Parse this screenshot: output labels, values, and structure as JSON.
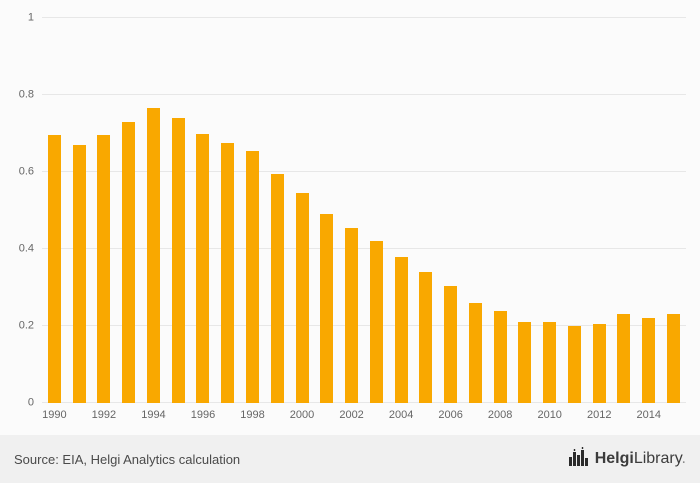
{
  "chart_data": {
    "type": "bar",
    "title": "",
    "xlabel": "",
    "ylabel": "",
    "categories": [
      1990,
      1991,
      1992,
      1993,
      1994,
      1995,
      1996,
      1997,
      1998,
      1999,
      2000,
      2001,
      2002,
      2003,
      2004,
      2005,
      2006,
      2007,
      2008,
      2009,
      2010,
      2011,
      2012,
      2013,
      2014,
      2015
    ],
    "values": [
      0.695,
      0.67,
      0.695,
      0.73,
      0.765,
      0.74,
      0.7,
      0.675,
      0.655,
      0.595,
      0.545,
      0.49,
      0.455,
      0.42,
      0.38,
      0.34,
      0.305,
      0.26,
      0.24,
      0.21,
      0.21,
      0.2,
      0.205,
      0.23,
      0.22,
      0.23
    ],
    "ylim": [
      0,
      1
    ],
    "ytick_labels": [
      "0",
      "0.2",
      "0.4",
      "0.6",
      "0.8",
      "1"
    ],
    "xtick_labels": [
      "1990",
      "1992",
      "1994",
      "1996",
      "1998",
      "2000",
      "2002",
      "2004",
      "2006",
      "2008",
      "2010",
      "2012",
      "2014"
    ],
    "bar_color": "#F9A800",
    "grid": true,
    "legend": false
  },
  "footer": {
    "source": "Source: EIA, Helgi Analytics calculation",
    "logo_bold": "Helgi",
    "logo_regular": "Library",
    "logo_dot": "."
  }
}
